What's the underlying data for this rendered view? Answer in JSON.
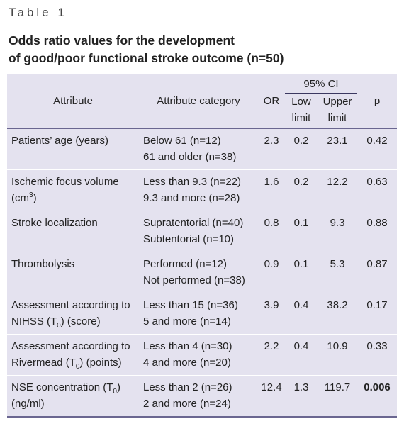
{
  "header": {
    "label": "Table 1",
    "title": [
      "Odds ratio values for the development",
      "of good/poor functional stroke outcome (n=50)"
    ]
  },
  "table": {
    "columns": {
      "attribute": "Attribute",
      "category": "Attribute category",
      "or": "OR",
      "ci": {
        "title": "95% CI",
        "low": "Low limit",
        "upper": "Upper limit"
      },
      "p": "p"
    },
    "rows": [
      {
        "attribute": [
          {
            "text": "Patients’ age (years)"
          }
        ],
        "categories": [
          "Below 61 (n=12)",
          "61 and older (n=38)"
        ],
        "or": 2.3,
        "low": 0.2,
        "upper": 23.1,
        "p": 0.42
      },
      {
        "attribute": [
          {
            "text": "Ischemic focus volume (cm"
          },
          {
            "sup": "3"
          },
          {
            "text": ")"
          }
        ],
        "categories": [
          "Less than 9.3 (n=22)",
          "9.3 and more (n=28)"
        ],
        "or": 1.6,
        "low": 0.2,
        "upper": 12.2,
        "p": 0.63
      },
      {
        "attribute": [
          {
            "text": "Stroke localization"
          }
        ],
        "categories": [
          "Supratentorial (n=40)",
          "Subtentorial (n=10)"
        ],
        "or": 0.8,
        "low": 0.1,
        "upper": 9.3,
        "p": 0.88
      },
      {
        "attribute": [
          {
            "text": "Thrombolysis"
          }
        ],
        "categories": [
          "Performed (n=12)",
          "Not performed (n=38)"
        ],
        "or": 0.9,
        "low": 0.1,
        "upper": 5.3,
        "p": 0.87
      },
      {
        "attribute": [
          {
            "text": "Assessment according to NIHSS (T"
          },
          {
            "sub": "0"
          },
          {
            "text": ") (score)"
          }
        ],
        "categories": [
          "Less than 15 (n=36)",
          "5 and more (n=14)"
        ],
        "or": 3.9,
        "low": 0.4,
        "upper": 38.2,
        "p": 0.17
      },
      {
        "attribute": [
          {
            "text": "Assessment according to Rivermead (T"
          },
          {
            "sub": "0"
          },
          {
            "text": ") (points)"
          }
        ],
        "categories": [
          "Less than 4 (n=30)",
          "4 and more (n=20)"
        ],
        "or": 2.2,
        "low": 0.4,
        "upper": 10.9,
        "p": 0.33
      },
      {
        "attribute": [
          {
            "text": "NSE concentration (T"
          },
          {
            "sub": "0"
          },
          {
            "text": ") (ng/ml)"
          }
        ],
        "categories": [
          "Less than 2 (n=26)",
          "2 and more (n=24)"
        ],
        "or": 12.4,
        "low": 1.3,
        "upper": 119.7,
        "p": 0.006,
        "p_bold": true
      }
    ]
  }
}
